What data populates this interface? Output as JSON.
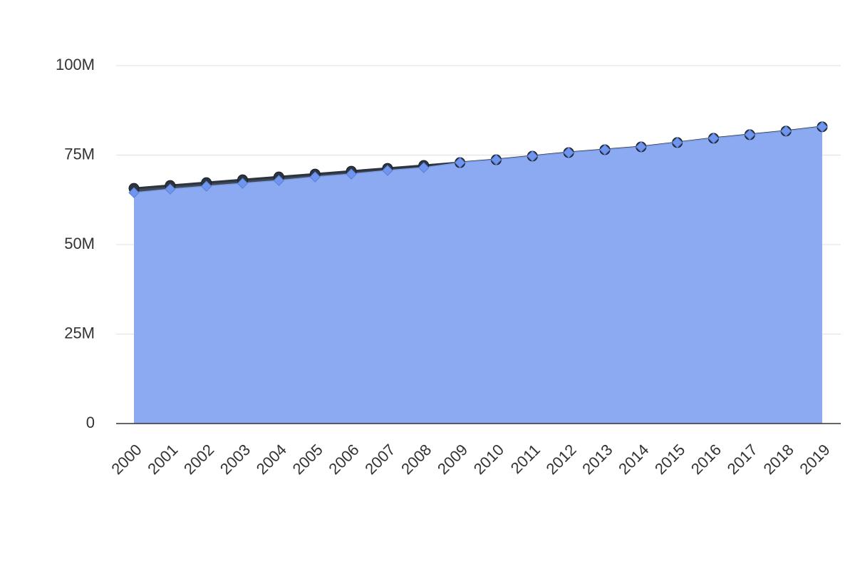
{
  "chart_data": {
    "type": "area",
    "categories": [
      "2000",
      "2001",
      "2002",
      "2003",
      "2004",
      "2005",
      "2006",
      "2007",
      "2008",
      "2009",
      "2010",
      "2011",
      "2012",
      "2013",
      "2014",
      "2015",
      "2016",
      "2017",
      "2018",
      "2019"
    ],
    "series": [
      {
        "color": "#2b3440",
        "marker": "circle",
        "values": [
          65700000,
          66500000,
          67300000,
          68100000,
          68900000,
          69700000,
          70500000,
          71300000,
          72100000,
          72900000,
          73700000,
          74700000,
          75700000,
          76500000,
          77300000,
          78500000,
          79700000,
          80700000,
          81700000,
          82900000
        ]
      },
      {
        "color": "#8fb0fa",
        "marker": "diamond",
        "values": [
          64500000,
          65500000,
          66300000,
          67100000,
          67900000,
          68900000,
          69700000,
          70700000,
          71500000,
          72900000,
          73700000,
          74700000,
          75700000,
          76500000,
          77300000,
          78500000,
          79700000,
          80700000,
          81700000,
          82900000
        ]
      }
    ],
    "ylim": [
      0,
      100000000
    ],
    "yticks": [
      0,
      {
        "value": 25000000,
        "label": "25M"
      },
      {
        "value": 50000000,
        "label": "50M"
      },
      {
        "value": 75000000,
        "label": "75M"
      },
      {
        "value": 100000000,
        "label": "100M"
      }
    ],
    "grid": true
  }
}
